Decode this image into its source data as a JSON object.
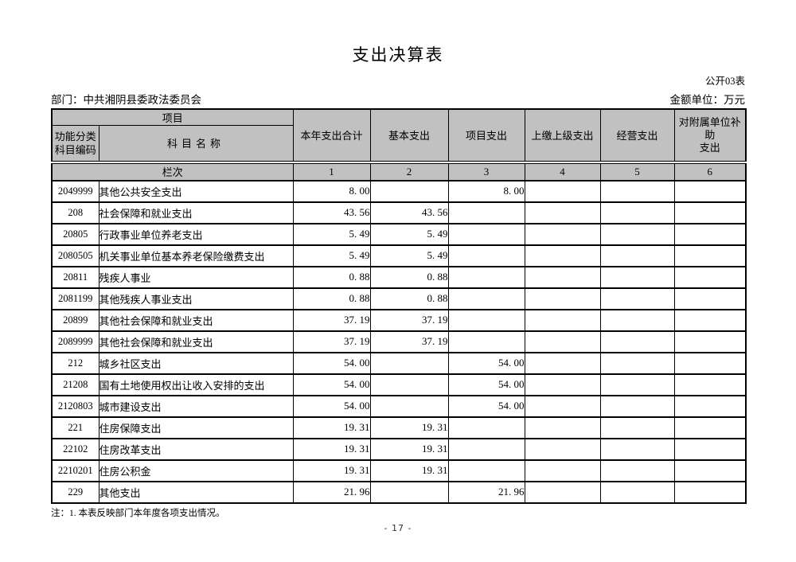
{
  "page": {
    "title": "支出决算表",
    "table_code": "公开03表",
    "department_label": "部门：中共湘阴县委政法委员会",
    "unit_label": "金额单位：万元",
    "note": "注：1. 本表反映部门本年度各项支出情况。",
    "page_number": "- 17 -"
  },
  "table": {
    "header": {
      "project_group": "项目",
      "code_label": "功能分类\n科目编码",
      "name_label": "科目名称",
      "columns": [
        "本年支出合计",
        "基本支出",
        "项目支出",
        "上缴上级支出",
        "经营支出",
        "对附属单位补助\n支出"
      ],
      "lanci_label": "栏次",
      "column_numbers": [
        "1",
        "2",
        "3",
        "4",
        "5",
        "6"
      ]
    },
    "rows": [
      {
        "code": "2049999",
        "name": "其他公共安全支出",
        "c1": "8. 00",
        "c2": "",
        "c3": "8. 00",
        "c4": "",
        "c5": "",
        "c6": ""
      },
      {
        "code": "208",
        "name": "社会保障和就业支出",
        "c1": "43. 56",
        "c2": "43. 56",
        "c3": "",
        "c4": "",
        "c5": "",
        "c6": ""
      },
      {
        "code": "20805",
        "name": "行政事业单位养老支出",
        "c1": "5. 49",
        "c2": "5. 49",
        "c3": "",
        "c4": "",
        "c5": "",
        "c6": ""
      },
      {
        "code": "2080505",
        "name": "机关事业单位基本养老保险缴费支出",
        "c1": "5. 49",
        "c2": "5. 49",
        "c3": "",
        "c4": "",
        "c5": "",
        "c6": ""
      },
      {
        "code": "20811",
        "name": "残疾人事业",
        "c1": "0. 88",
        "c2": "0. 88",
        "c3": "",
        "c4": "",
        "c5": "",
        "c6": ""
      },
      {
        "code": "2081199",
        "name": "其他残疾人事业支出",
        "c1": "0. 88",
        "c2": "0. 88",
        "c3": "",
        "c4": "",
        "c5": "",
        "c6": ""
      },
      {
        "code": "20899",
        "name": "其他社会保障和就业支出",
        "c1": "37. 19",
        "c2": "37. 19",
        "c3": "",
        "c4": "",
        "c5": "",
        "c6": ""
      },
      {
        "code": "2089999",
        "name": "其他社会保障和就业支出",
        "c1": "37. 19",
        "c2": "37. 19",
        "c3": "",
        "c4": "",
        "c5": "",
        "c6": ""
      },
      {
        "code": "212",
        "name": "城乡社区支出",
        "c1": "54. 00",
        "c2": "",
        "c3": "54. 00",
        "c4": "",
        "c5": "",
        "c6": ""
      },
      {
        "code": "21208",
        "name": "国有土地使用权出让收入安排的支出",
        "c1": "54. 00",
        "c2": "",
        "c3": "54. 00",
        "c4": "",
        "c5": "",
        "c6": ""
      },
      {
        "code": "2120803",
        "name": "城市建设支出",
        "c1": "54. 00",
        "c2": "",
        "c3": "54. 00",
        "c4": "",
        "c5": "",
        "c6": ""
      },
      {
        "code": "221",
        "name": "住房保障支出",
        "c1": "19. 31",
        "c2": "19. 31",
        "c3": "",
        "c4": "",
        "c5": "",
        "c6": ""
      },
      {
        "code": "22102",
        "name": "住房改革支出",
        "c1": "19. 31",
        "c2": "19. 31",
        "c3": "",
        "c4": "",
        "c5": "",
        "c6": ""
      },
      {
        "code": "2210201",
        "name": "住房公积金",
        "c1": "19. 31",
        "c2": "19. 31",
        "c3": "",
        "c4": "",
        "c5": "",
        "c6": ""
      },
      {
        "code": "229",
        "name": "其他支出",
        "c1": "21. 96",
        "c2": "",
        "c3": "21. 96",
        "c4": "",
        "c5": "",
        "c6": ""
      }
    ]
  }
}
